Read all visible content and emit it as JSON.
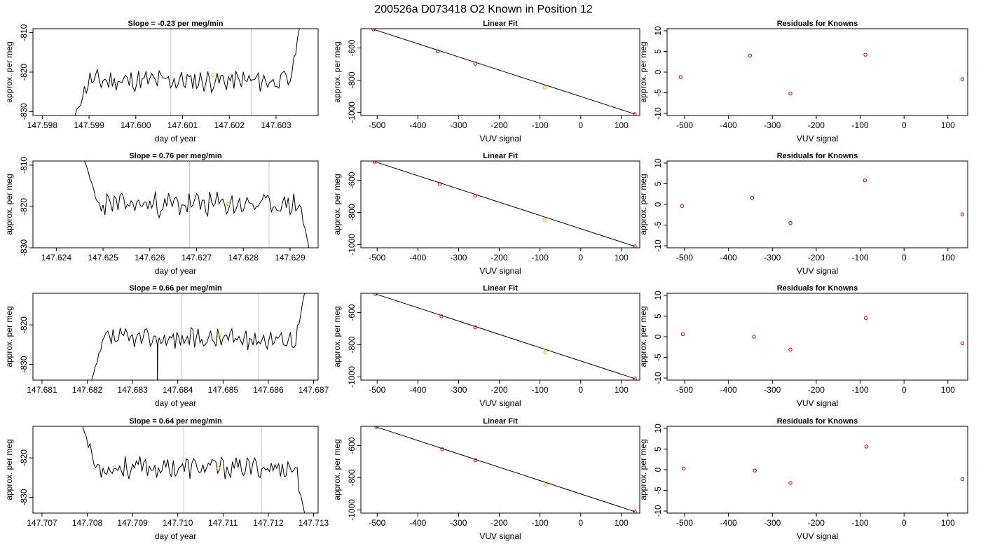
{
  "suptitle": "200526a     D073418   O2 Known in Position  12",
  "colors": {
    "trace": "#000000",
    "vline": "#c8c8c8",
    "highlight": "#ffa500",
    "residual": "#cc0000",
    "fit": "#000000"
  },
  "chart_data": [
    {
      "type": "line",
      "panel": "timeseries",
      "title": "Slope =  -0.23  per meg/min",
      "xlabel": "day of year",
      "ylabel": "approx. per meg",
      "xlim": [
        147.5978,
        147.6039
      ],
      "ylim": [
        -831,
        -809
      ],
      "xticks": [
        "147.598",
        "147.599",
        "147.600",
        "147.601",
        "147.602",
        "147.603"
      ],
      "xtick_values": [
        147.598,
        147.599,
        147.6,
        147.601,
        147.602,
        147.603
      ],
      "yticks": [
        "-830",
        "-820",
        "-810"
      ],
      "ytick_values": [
        -830,
        -820,
        -810
      ],
      "vlines": [
        147.60075,
        147.60247
      ],
      "highlight": {
        "x": 147.60165,
        "y": -820.8
      },
      "trace": {
        "x_start": 147.5987,
        "x_end": 147.6035,
        "base": -822.2,
        "amplitude": 1.5,
        "rise_end": -809,
        "seed": 11,
        "dip_x": null
      }
    },
    {
      "type": "scatter",
      "panel": "fit",
      "title": "Linear Fit",
      "xlabel": "VUV signal",
      "ylabel": "approx. per meg",
      "xlim": [
        -540,
        145
      ],
      "ylim": [
        -1020,
        -480
      ],
      "xticks": [
        "-500",
        "-400",
        "-300",
        "-200",
        "-100",
        "0",
        "100"
      ],
      "xtick_values": [
        -500,
        -400,
        -300,
        -200,
        -100,
        0,
        100
      ],
      "yticks": [
        "-1000",
        "-800",
        "-600"
      ],
      "ytick_values": [
        -1000,
        -800,
        -600
      ],
      "points": [
        [
          -509,
          -484
        ],
        [
          -351,
          -621
        ],
        [
          -259,
          -698
        ],
        [
          -88,
          -846
        ],
        [
          133,
          -1011
        ]
      ],
      "highlight_index": 3,
      "line": [
        [
          -509,
          -484
        ],
        [
          133,
          -1011
        ]
      ]
    },
    {
      "type": "scatter",
      "panel": "residuals",
      "title": "Residuals for Knowns",
      "xlabel": "VUV signal",
      "ylabel": "approx. per meg",
      "xlim": [
        -540,
        145
      ],
      "ylim": [
        -10.5,
        10.5
      ],
      "xticks": [
        "-500",
        "-400",
        "-300",
        "-200",
        "-100",
        "0",
        "100"
      ],
      "xtick_values": [
        -500,
        -400,
        -300,
        -200,
        -100,
        0,
        100
      ],
      "yticks": [
        "-10",
        "-5",
        "0",
        "5",
        "10"
      ],
      "ytick_values": [
        -10,
        -5,
        0,
        5,
        10
      ],
      "points": [
        [
          -509,
          -1.2
        ],
        [
          -351,
          4.0
        ],
        [
          -259,
          -5.2
        ],
        [
          -88,
          4.2
        ],
        [
          133,
          -1.7
        ]
      ]
    },
    {
      "type": "line",
      "panel": "timeseries",
      "title": "Slope =  0.76  per meg/min",
      "xlabel": "day of year",
      "ylabel": "approx. per meg",
      "xlim": [
        147.6235,
        147.6296
      ],
      "ylim": [
        -830,
        -809
      ],
      "xticks": [
        "147.624",
        "147.625",
        "147.626",
        "147.627",
        "147.628",
        "147.629"
      ],
      "xtick_values": [
        147.624,
        147.625,
        147.626,
        147.627,
        147.628,
        147.629
      ],
      "yticks": [
        "-830",
        "-820",
        "-810"
      ],
      "ytick_values": [
        -830,
        -820,
        -810
      ],
      "vlines": [
        147.62685,
        147.62855
      ],
      "highlight": {
        "x": 147.62768,
        "y": -819.4
      },
      "trace": {
        "x_start": 147.6246,
        "x_end": 147.6294,
        "base": -819.5,
        "amplitude": 1.6,
        "fall_end": -830,
        "start_high": -809,
        "seed": 23,
        "dip_x": null
      }
    },
    {
      "type": "scatter",
      "panel": "fit",
      "title": "Linear Fit",
      "xlabel": "VUV signal",
      "ylabel": "approx. per meg",
      "xlim": [
        -540,
        145
      ],
      "ylim": [
        -1020,
        -480
      ],
      "xticks": [
        "-500",
        "-400",
        "-300",
        "-200",
        "-100",
        "0",
        "100"
      ],
      "xtick_values": [
        -500,
        -400,
        -300,
        -200,
        -100,
        0,
        100
      ],
      "yticks": [
        "-1000",
        "-800",
        "-600"
      ],
      "ytick_values": [
        -1000,
        -800,
        -600
      ],
      "points": [
        [
          -506,
          -484
        ],
        [
          -346,
          -623
        ],
        [
          -259,
          -696
        ],
        [
          -89,
          -846
        ],
        [
          133,
          -1011
        ]
      ],
      "highlight_index": 3,
      "line": [
        [
          -506,
          -484
        ],
        [
          133,
          -1011
        ]
      ]
    },
    {
      "type": "scatter",
      "panel": "residuals",
      "title": "Residuals for Knowns",
      "xlabel": "VUV signal",
      "ylabel": "approx. per meg",
      "xlim": [
        -540,
        145
      ],
      "ylim": [
        -10.5,
        10.5
      ],
      "xticks": [
        "-500",
        "-400",
        "-300",
        "-200",
        "-100",
        "0",
        "100"
      ],
      "xtick_values": [
        -500,
        -400,
        -300,
        -200,
        -100,
        0,
        100
      ],
      "yticks": [
        "-10",
        "-5",
        "0",
        "5",
        "10"
      ],
      "ytick_values": [
        -10,
        -5,
        0,
        5,
        10
      ],
      "points": [
        [
          -506,
          -0.4
        ],
        [
          -346,
          1.6
        ],
        [
          -259,
          -4.5
        ],
        [
          -89,
          5.8
        ],
        [
          133,
          -2.4
        ]
      ]
    },
    {
      "type": "line",
      "panel": "timeseries",
      "title": "Slope =  0.66  per meg/min",
      "xlabel": "day of year",
      "ylabel": "approx. per meg",
      "xlim": [
        147.6808,
        147.6871
      ],
      "ylim": [
        -834,
        -812
      ],
      "xticks": [
        "147.681",
        "147.682",
        "147.683",
        "147.684",
        "147.685",
        "147.686",
        "147.687"
      ],
      "xtick_values": [
        147.681,
        147.682,
        147.683,
        147.684,
        147.685,
        147.686,
        147.687
      ],
      "yticks": [
        "-830",
        "-820"
      ],
      "ytick_values": [
        -830,
        -820
      ],
      "vlines": [
        147.68408,
        147.68578
      ],
      "highlight": {
        "x": 147.68491,
        "y": -822.8
      },
      "trace": {
        "x_start": 147.6821,
        "x_end": 147.6868,
        "base": -823.5,
        "amplitude": 1.4,
        "rise_end": -812,
        "start_low": -834,
        "seed": 37,
        "dip_x": 147.68355
      }
    },
    {
      "type": "scatter",
      "panel": "fit",
      "title": "Linear Fit",
      "xlabel": "VUV signal",
      "ylabel": "approx. per meg",
      "xlim": [
        -540,
        145
      ],
      "ylim": [
        -1020,
        -480
      ],
      "xticks": [
        "-500",
        "-400",
        "-300",
        "-200",
        "-100",
        "0",
        "100"
      ],
      "xtick_values": [
        -500,
        -400,
        -300,
        -200,
        -100,
        0,
        100
      ],
      "yticks": [
        "-1000",
        "-800",
        "-600"
      ],
      "ytick_values": [
        -1000,
        -800,
        -600
      ],
      "points": [
        [
          -504,
          -484
        ],
        [
          -342,
          -623
        ],
        [
          -259,
          -692
        ],
        [
          -87,
          -846
        ],
        [
          133,
          -1011
        ]
      ],
      "highlight_index": 3,
      "line": [
        [
          -504,
          -484
        ],
        [
          133,
          -1011
        ]
      ]
    },
    {
      "type": "scatter",
      "panel": "residuals",
      "title": "Residuals for Knowns",
      "xlabel": "VUV signal",
      "ylabel": "approx. per meg",
      "xlim": [
        -540,
        145
      ],
      "ylim": [
        -10.5,
        10.5
      ],
      "xticks": [
        "-500",
        "-400",
        "-300",
        "-200",
        "-100",
        "0",
        "100"
      ],
      "xtick_values": [
        -500,
        -400,
        -300,
        -200,
        -100,
        0,
        100
      ],
      "yticks": [
        "-10",
        "-5",
        "0",
        "5",
        "10"
      ],
      "ytick_values": [
        -10,
        -5,
        0,
        5,
        10
      ],
      "points": [
        [
          -504,
          0.6
        ],
        [
          -342,
          0.0
        ],
        [
          -259,
          -3.1
        ],
        [
          -87,
          4.5
        ],
        [
          133,
          -1.6
        ]
      ]
    },
    {
      "type": "line",
      "panel": "timeseries",
      "title": "Slope =  0.64  per meg/min",
      "xlabel": "day of year",
      "ylabel": "approx. per meg",
      "xlim": [
        147.7068,
        147.7131
      ],
      "ylim": [
        -834,
        -812
      ],
      "xticks": [
        "147.707",
        "147.708",
        "147.709",
        "147.710",
        "147.711",
        "147.712",
        "147.713"
      ],
      "xtick_values": [
        147.707,
        147.708,
        147.709,
        147.71,
        147.711,
        147.712,
        147.713
      ],
      "yticks": [
        "-830",
        "-820"
      ],
      "ytick_values": [
        -830,
        -820
      ],
      "vlines": [
        147.71013,
        147.71185
      ],
      "highlight": {
        "x": 147.7109,
        "y": -822.6
      },
      "trace": {
        "x_start": 147.7079,
        "x_end": 147.7128,
        "base": -822.5,
        "amplitude": 1.5,
        "fall_end": -834,
        "start_high": -812,
        "seed": 53,
        "dip_x": null
      }
    },
    {
      "type": "scatter",
      "panel": "fit",
      "title": "Linear Fit",
      "xlabel": "VUV signal",
      "ylabel": "approx. per meg",
      "xlim": [
        -540,
        145
      ],
      "ylim": [
        -1020,
        -480
      ],
      "xticks": [
        "-500",
        "-400",
        "-300",
        "-200",
        "-100",
        "0",
        "100"
      ],
      "xtick_values": [
        -500,
        -400,
        -300,
        -200,
        -100,
        0,
        100
      ],
      "yticks": [
        "-1000",
        "-800",
        "-600"
      ],
      "ytick_values": [
        -1000,
        -800,
        -600
      ],
      "points": [
        [
          -502,
          -484
        ],
        [
          -340,
          -623
        ],
        [
          -259,
          -691
        ],
        [
          -86,
          -846
        ],
        [
          133,
          -1011
        ]
      ],
      "highlight_index": 3,
      "line": [
        [
          -502,
          -484
        ],
        [
          133,
          -1011
        ]
      ]
    },
    {
      "type": "scatter",
      "panel": "residuals",
      "title": "Residuals for Knowns",
      "xlabel": "VUV signal",
      "ylabel": "approx. per meg",
      "xlim": [
        -540,
        145
      ],
      "ylim": [
        -10.5,
        10.5
      ],
      "xticks": [
        "-500",
        "-400",
        "-300",
        "-200",
        "-100",
        "0",
        "100"
      ],
      "xtick_values": [
        -500,
        -400,
        -300,
        -200,
        -100,
        0,
        100
      ],
      "yticks": [
        "-10",
        "-5",
        "0",
        "5",
        "10"
      ],
      "ytick_values": [
        -10,
        -5,
        0,
        5,
        10
      ],
      "points": [
        [
          -502,
          0.3
        ],
        [
          -340,
          -0.2
        ],
        [
          -259,
          -3.2
        ],
        [
          -86,
          5.6
        ],
        [
          133,
          -2.3
        ]
      ]
    }
  ]
}
